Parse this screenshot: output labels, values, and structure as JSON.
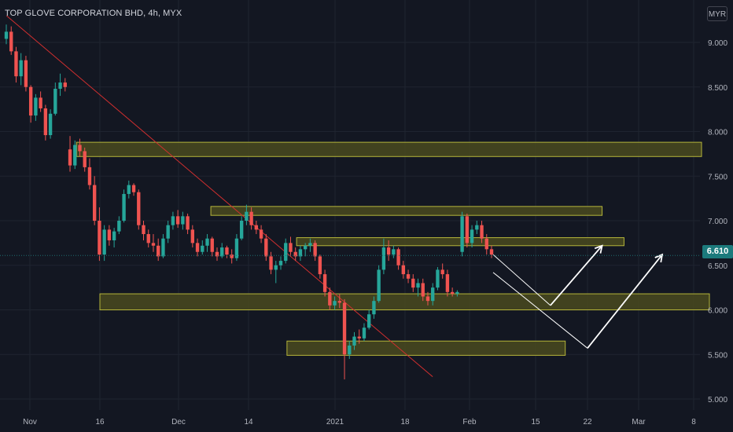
{
  "title": "TOP GLOVE CORPORATION BHD, 4h, MYX",
  "currency_button": "MYR",
  "last_price_label": "6.610",
  "colors": {
    "background": "#131722",
    "up": "#26a69a",
    "down": "#ef5350",
    "zone_fill": "#4a4a1e",
    "zone_border": "#b5b53a",
    "trendline": "#d32f2f",
    "projection": "#ffffff",
    "price_line": "#1c6f70"
  },
  "chart_data": {
    "type": "candlestick",
    "x_tick_labels": [
      "Nov",
      "16",
      "Dec",
      "14",
      "2021",
      "18",
      "Feb",
      "15",
      "22",
      "Mar",
      "8"
    ],
    "y_tick_labels": [
      "5.000",
      "5.500",
      "6.000",
      "6.500",
      "7.000",
      "7.500",
      "8.000",
      "8.500",
      "9.000"
    ],
    "y_range": [
      4.9,
      9.3
    ],
    "last_price": 6.61,
    "zones": [
      {
        "from": "2020-11-11",
        "to": "2021-03-09",
        "low": 7.72,
        "high": 7.88
      },
      {
        "from": "2020-12-07",
        "to": "2021-02-24",
        "low": 7.06,
        "high": 7.16
      },
      {
        "from": "2020-12-24",
        "to": "2021-02-27",
        "low": 6.72,
        "high": 6.81
      },
      {
        "from": "2020-11-16",
        "to": "2021-03-10",
        "low": 6.0,
        "high": 6.18
      },
      {
        "from": "2020-12-22",
        "to": "2021-02-19",
        "low": 5.49,
        "high": 5.65
      }
    ],
    "trendline": {
      "start": [
        "2020-10-27",
        9.3
      ],
      "end": [
        "2021-01-24",
        5.25
      ]
    },
    "projections": [
      {
        "points": [
          [
            "2021-02-06",
            6.62
          ],
          [
            "2021-02-17",
            6.05
          ],
          [
            "2021-02-24",
            6.72
          ]
        ]
      },
      {
        "points": [
          [
            "2021-02-06",
            6.42
          ],
          [
            "2021-02-22",
            5.57
          ],
          [
            "2021-03-04",
            6.62
          ]
        ]
      }
    ],
    "candles": [
      [
        9.04,
        9.2,
        8.98,
        9.12
      ],
      [
        9.12,
        9.18,
        8.86,
        8.9
      ],
      [
        8.9,
        8.95,
        8.55,
        8.62
      ],
      [
        8.62,
        8.88,
        8.52,
        8.8
      ],
      [
        8.8,
        8.85,
        8.45,
        8.5
      ],
      [
        8.5,
        8.52,
        8.1,
        8.18
      ],
      [
        8.18,
        8.42,
        8.12,
        8.38
      ],
      [
        8.38,
        8.45,
        8.22,
        8.26
      ],
      [
        8.26,
        8.3,
        7.9,
        7.96
      ],
      [
        7.96,
        8.25,
        7.92,
        8.2
      ],
      [
        8.2,
        8.55,
        8.18,
        8.48
      ],
      [
        8.48,
        8.65,
        8.4,
        8.55
      ],
      [
        8.55,
        8.6,
        8.45,
        8.5
      ],
      [
        7.8,
        7.95,
        7.55,
        7.62
      ],
      [
        7.62,
        7.9,
        7.58,
        7.85
      ],
      [
        7.85,
        7.92,
        7.72,
        7.78
      ],
      [
        7.78,
        7.82,
        7.55,
        7.6
      ],
      [
        7.6,
        7.7,
        7.35,
        7.4
      ],
      [
        7.4,
        7.5,
        6.95,
        7.0
      ],
      [
        7.0,
        7.15,
        6.55,
        6.62
      ],
      [
        6.62,
        6.95,
        6.55,
        6.9
      ],
      [
        6.9,
        6.95,
        6.72,
        6.78
      ],
      [
        6.78,
        6.92,
        6.7,
        6.88
      ],
      [
        6.88,
        7.05,
        6.85,
        7.0
      ],
      [
        7.0,
        7.35,
        6.98,
        7.3
      ],
      [
        7.3,
        7.45,
        7.25,
        7.4
      ],
      [
        7.4,
        7.42,
        7.28,
        7.32
      ],
      [
        7.32,
        7.35,
        6.9,
        6.95
      ],
      [
        6.95,
        7.0,
        6.78,
        6.85
      ],
      [
        6.85,
        6.9,
        6.7,
        6.75
      ],
      [
        6.75,
        6.85,
        6.65,
        6.72
      ],
      [
        6.72,
        6.8,
        6.55,
        6.6
      ],
      [
        6.6,
        6.85,
        6.58,
        6.8
      ],
      [
        6.8,
        7.0,
        6.75,
        6.95
      ],
      [
        6.95,
        7.1,
        6.9,
        7.05
      ],
      [
        7.05,
        7.12,
        6.92,
        6.96
      ],
      [
        6.96,
        7.1,
        6.9,
        7.05
      ],
      [
        7.05,
        7.08,
        6.85,
        6.9
      ],
      [
        6.9,
        6.95,
        6.7,
        6.75
      ],
      [
        6.75,
        6.8,
        6.6,
        6.65
      ],
      [
        6.65,
        6.78,
        6.62,
        6.72
      ],
      [
        6.72,
        6.85,
        6.65,
        6.8
      ],
      [
        6.8,
        6.82,
        6.6,
        6.65
      ],
      [
        6.65,
        6.7,
        6.55,
        6.6
      ],
      [
        6.6,
        6.75,
        6.58,
        6.7
      ],
      [
        6.7,
        6.72,
        6.58,
        6.62
      ],
      [
        6.62,
        6.68,
        6.52,
        6.58
      ],
      [
        6.58,
        6.85,
        6.55,
        6.8
      ],
      [
        6.8,
        7.05,
        6.78,
        7.0
      ],
      [
        7.0,
        7.18,
        6.95,
        7.1
      ],
      [
        7.1,
        7.15,
        6.9,
        6.95
      ],
      [
        6.95,
        7.0,
        6.85,
        6.9
      ],
      [
        6.9,
        6.95,
        6.75,
        6.8
      ],
      [
        6.8,
        6.85,
        6.55,
        6.6
      ],
      [
        6.6,
        6.65,
        6.4,
        6.45
      ],
      [
        6.45,
        6.55,
        6.3,
        6.5
      ],
      [
        6.5,
        6.6,
        6.45,
        6.55
      ],
      [
        6.55,
        6.8,
        6.52,
        6.75
      ],
      [
        6.75,
        6.82,
        6.6,
        6.65
      ],
      [
        6.65,
        6.7,
        6.55,
        6.6
      ],
      [
        6.6,
        6.72,
        6.55,
        6.68
      ],
      [
        6.68,
        6.75,
        6.6,
        6.72
      ],
      [
        6.72,
        6.8,
        6.65,
        6.75
      ],
      [
        6.75,
        6.78,
        6.55,
        6.6
      ],
      [
        6.6,
        6.62,
        6.35,
        6.4
      ],
      [
        6.4,
        6.45,
        6.15,
        6.2
      ],
      [
        6.2,
        6.25,
        6.0,
        6.05
      ],
      [
        6.05,
        6.15,
        6.0,
        6.1
      ],
      [
        6.1,
        6.18,
        6.02,
        6.08
      ],
      [
        6.08,
        6.12,
        5.22,
        5.5
      ],
      [
        5.5,
        5.65,
        5.45,
        5.6
      ],
      [
        5.6,
        5.75,
        5.55,
        5.7
      ],
      [
        5.7,
        5.78,
        5.62,
        5.68
      ],
      [
        5.68,
        5.85,
        5.65,
        5.8
      ],
      [
        5.8,
        6.0,
        5.78,
        5.95
      ],
      [
        5.95,
        6.15,
        5.9,
        6.1
      ],
      [
        6.1,
        6.5,
        6.08,
        6.45
      ],
      [
        6.45,
        6.8,
        6.4,
        6.7
      ],
      [
        6.7,
        6.78,
        6.55,
        6.62
      ],
      [
        6.62,
        6.72,
        6.58,
        6.68
      ],
      [
        6.68,
        6.7,
        6.45,
        6.5
      ],
      [
        6.5,
        6.55,
        6.35,
        6.4
      ],
      [
        6.4,
        6.45,
        6.3,
        6.35
      ],
      [
        6.35,
        6.4,
        6.2,
        6.25
      ],
      [
        6.25,
        6.35,
        6.15,
        6.3
      ],
      [
        6.3,
        6.35,
        6.1,
        6.15
      ],
      [
        6.15,
        6.2,
        6.05,
        6.1
      ],
      [
        6.1,
        6.3,
        6.05,
        6.25
      ],
      [
        6.25,
        6.48,
        6.22,
        6.45
      ],
      [
        6.45,
        6.52,
        6.35,
        6.4
      ],
      [
        6.4,
        6.45,
        6.15,
        6.2
      ],
      [
        6.2,
        6.25,
        6.15,
        6.18
      ],
      [
        6.18,
        6.22,
        6.15,
        6.2
      ],
      [
        6.65,
        7.1,
        6.6,
        7.05
      ],
      [
        7.05,
        7.08,
        6.7,
        6.75
      ],
      [
        6.75,
        6.95,
        6.7,
        6.9
      ],
      [
        6.9,
        7.0,
        6.85,
        6.95
      ],
      [
        6.95,
        7.0,
        6.75,
        6.8
      ],
      [
        6.8,
        6.85,
        6.62,
        6.68
      ],
      [
        6.68,
        6.72,
        6.58,
        6.62
      ]
    ]
  }
}
